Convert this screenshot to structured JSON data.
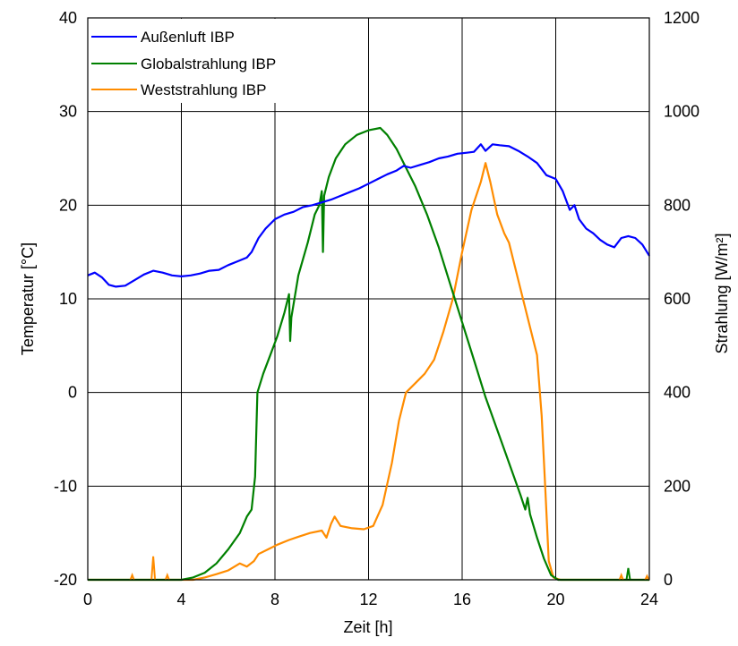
{
  "chart_data": {
    "type": "line",
    "xlabel": "Zeit [h]",
    "ylabel_left": "Temperatur [°C]",
    "ylabel_right": "Strahlung [W/m²]",
    "xlim": [
      0,
      24
    ],
    "ylim_left": [
      -20,
      40
    ],
    "ylim_right": [
      0,
      1200
    ],
    "x_ticks": [
      0,
      4,
      8,
      12,
      16,
      20,
      24
    ],
    "y_left_ticks": [
      -20,
      -10,
      0,
      10,
      20,
      30,
      40
    ],
    "y_right_ticks": [
      0,
      200,
      400,
      600,
      800,
      1000,
      1200
    ],
    "grid": true,
    "legend_position": "top-left",
    "series": [
      {
        "name": "Außenluft IBP",
        "axis": "left",
        "color": "#0000ff",
        "points": [
          [
            0,
            12.5
          ],
          [
            0.3,
            12.8
          ],
          [
            0.6,
            12.3
          ],
          [
            0.9,
            11.5
          ],
          [
            1.2,
            11.3
          ],
          [
            1.6,
            11.4
          ],
          [
            2.0,
            12.0
          ],
          [
            2.4,
            12.6
          ],
          [
            2.8,
            13.0
          ],
          [
            3.2,
            12.8
          ],
          [
            3.6,
            12.5
          ],
          [
            4.0,
            12.4
          ],
          [
            4.4,
            12.5
          ],
          [
            4.8,
            12.7
          ],
          [
            5.2,
            13.0
          ],
          [
            5.6,
            13.1
          ],
          [
            6.0,
            13.6
          ],
          [
            6.4,
            14.0
          ],
          [
            6.8,
            14.4
          ],
          [
            7.0,
            15.0
          ],
          [
            7.3,
            16.5
          ],
          [
            7.6,
            17.5
          ],
          [
            8.0,
            18.5
          ],
          [
            8.4,
            19.0
          ],
          [
            8.8,
            19.3
          ],
          [
            9.2,
            19.8
          ],
          [
            9.6,
            20.0
          ],
          [
            10.0,
            20.3
          ],
          [
            10.4,
            20.6
          ],
          [
            10.8,
            21.0
          ],
          [
            11.2,
            21.4
          ],
          [
            11.6,
            21.8
          ],
          [
            12.0,
            22.3
          ],
          [
            12.4,
            22.8
          ],
          [
            12.8,
            23.3
          ],
          [
            13.2,
            23.7
          ],
          [
            13.5,
            24.2
          ],
          [
            13.8,
            24.0
          ],
          [
            14.2,
            24.3
          ],
          [
            14.6,
            24.6
          ],
          [
            15.0,
            25.0
          ],
          [
            15.4,
            25.2
          ],
          [
            15.8,
            25.5
          ],
          [
            16.2,
            25.6
          ],
          [
            16.5,
            25.7
          ],
          [
            16.8,
            26.5
          ],
          [
            17.0,
            25.8
          ],
          [
            17.3,
            26.5
          ],
          [
            17.6,
            26.4
          ],
          [
            18.0,
            26.3
          ],
          [
            18.4,
            25.8
          ],
          [
            18.8,
            25.2
          ],
          [
            19.2,
            24.5
          ],
          [
            19.6,
            23.2
          ],
          [
            20.0,
            22.8
          ],
          [
            20.3,
            21.5
          ],
          [
            20.6,
            19.5
          ],
          [
            20.8,
            20.0
          ],
          [
            21.0,
            18.5
          ],
          [
            21.3,
            17.5
          ],
          [
            21.6,
            17.0
          ],
          [
            21.9,
            16.3
          ],
          [
            22.2,
            15.8
          ],
          [
            22.5,
            15.5
          ],
          [
            22.8,
            16.5
          ],
          [
            23.1,
            16.7
          ],
          [
            23.4,
            16.5
          ],
          [
            23.7,
            15.8
          ],
          [
            24.0,
            14.6
          ]
        ]
      },
      {
        "name": "Globalstrahlung IBP",
        "axis": "right",
        "color": "#008000",
        "points": [
          [
            0,
            0
          ],
          [
            4.0,
            0
          ],
          [
            4.5,
            5
          ],
          [
            5.0,
            15
          ],
          [
            5.5,
            35
          ],
          [
            6.0,
            65
          ],
          [
            6.5,
            100
          ],
          [
            6.8,
            135
          ],
          [
            7.0,
            150
          ],
          [
            7.15,
            220
          ],
          [
            7.25,
            400
          ],
          [
            7.5,
            440
          ],
          [
            7.8,
            480
          ],
          [
            8.1,
            520
          ],
          [
            8.4,
            570
          ],
          [
            8.6,
            610
          ],
          [
            8.65,
            510
          ],
          [
            8.7,
            560
          ],
          [
            9.0,
            650
          ],
          [
            9.4,
            720
          ],
          [
            9.7,
            780
          ],
          [
            9.9,
            800
          ],
          [
            10.0,
            830
          ],
          [
            10.05,
            700
          ],
          [
            10.1,
            820
          ],
          [
            10.3,
            860
          ],
          [
            10.6,
            900
          ],
          [
            11.0,
            930
          ],
          [
            11.5,
            950
          ],
          [
            12.0,
            960
          ],
          [
            12.5,
            965
          ],
          [
            12.8,
            950
          ],
          [
            13.2,
            920
          ],
          [
            13.6,
            880
          ],
          [
            14.0,
            840
          ],
          [
            14.5,
            780
          ],
          [
            15.0,
            710
          ],
          [
            15.5,
            630
          ],
          [
            16.0,
            550
          ],
          [
            16.5,
            470
          ],
          [
            17.0,
            390
          ],
          [
            17.5,
            320
          ],
          [
            18.0,
            250
          ],
          [
            18.5,
            180
          ],
          [
            18.7,
            150
          ],
          [
            18.8,
            175
          ],
          [
            18.9,
            140
          ],
          [
            19.2,
            90
          ],
          [
            19.5,
            45
          ],
          [
            19.8,
            10
          ],
          [
            20.1,
            0
          ],
          [
            24.0,
            0
          ]
        ]
      },
      {
        "name": "Weststrahlung IBP",
        "axis": "right",
        "color": "#ff8c00",
        "points": [
          [
            0,
            0
          ],
          [
            4.5,
            0
          ],
          [
            5.0,
            5
          ],
          [
            5.5,
            12
          ],
          [
            6.0,
            20
          ],
          [
            6.5,
            35
          ],
          [
            6.8,
            28
          ],
          [
            7.1,
            40
          ],
          [
            7.3,
            55
          ],
          [
            7.7,
            65
          ],
          [
            8.1,
            75
          ],
          [
            8.6,
            85
          ],
          [
            9.0,
            92
          ],
          [
            9.5,
            100
          ],
          [
            10.0,
            105
          ],
          [
            10.2,
            90
          ],
          [
            10.4,
            120
          ],
          [
            10.55,
            135
          ],
          [
            10.8,
            115
          ],
          [
            11.3,
            110
          ],
          [
            11.8,
            108
          ],
          [
            12.2,
            115
          ],
          [
            12.6,
            160
          ],
          [
            13.0,
            250
          ],
          [
            13.3,
            340
          ],
          [
            13.6,
            400
          ],
          [
            14.0,
            420
          ],
          [
            14.4,
            440
          ],
          [
            14.8,
            470
          ],
          [
            15.2,
            530
          ],
          [
            15.6,
            600
          ],
          [
            16.0,
            700
          ],
          [
            16.4,
            790
          ],
          [
            16.8,
            850
          ],
          [
            17.0,
            890
          ],
          [
            17.2,
            850
          ],
          [
            17.5,
            780
          ],
          [
            17.8,
            740
          ],
          [
            18.0,
            720
          ],
          [
            18.4,
            640
          ],
          [
            18.8,
            560
          ],
          [
            19.2,
            480
          ],
          [
            19.4,
            350
          ],
          [
            19.55,
            200
          ],
          [
            19.7,
            40
          ],
          [
            19.9,
            5
          ],
          [
            20.2,
            0
          ],
          [
            24.0,
            0
          ]
        ]
      }
    ],
    "spikes": [
      {
        "series": "Weststrahlung IBP",
        "x": 1.9,
        "peak": 10
      },
      {
        "series": "Weststrahlung IBP",
        "x": 2.8,
        "peak": 50
      },
      {
        "series": "Weststrahlung IBP",
        "x": 3.4,
        "peak": 10
      },
      {
        "series": "Weststrahlung IBP",
        "x": 22.8,
        "peak": 10
      },
      {
        "series": "Weststrahlung IBP",
        "x": 23.9,
        "peak": 8
      },
      {
        "series": "Globalstrahlung IBP",
        "x": 23.1,
        "peak": 25
      }
    ]
  }
}
